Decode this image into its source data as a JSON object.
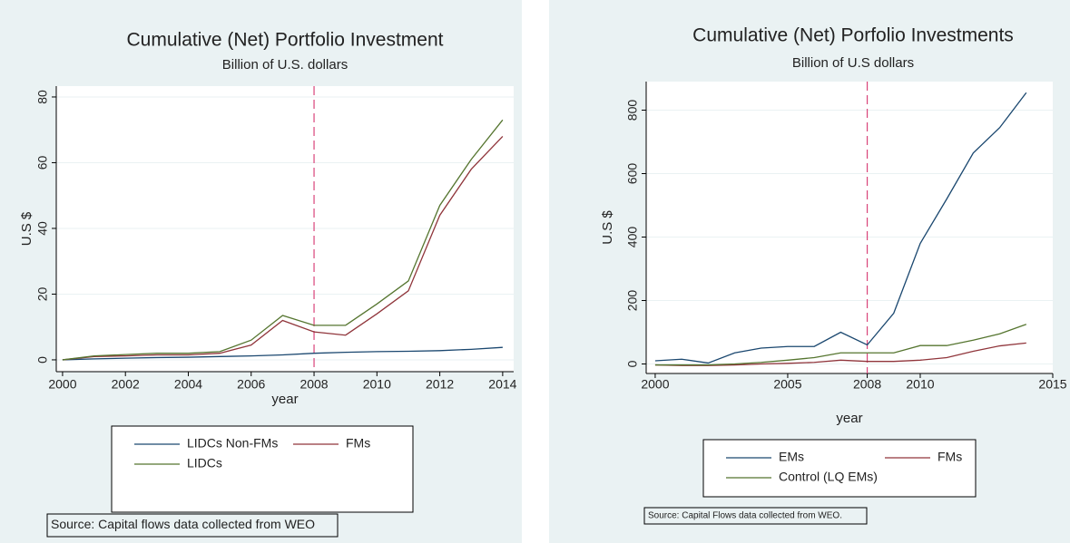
{
  "chart_data": [
    {
      "type": "line",
      "title": "Cumulative (Net) Portfolio Investment",
      "subtitle": "Billion of U.S. dollars",
      "x_label": "year",
      "y_label": "U.S $",
      "note": "Source: Capital flows data collected from WEO",
      "x": [
        2000,
        2001,
        2002,
        2003,
        2004,
        2005,
        2006,
        2007,
        2008,
        2009,
        2010,
        2011,
        2012,
        2013,
        2014
      ],
      "series": [
        {
          "name": "LIDCs Non-FMs",
          "color": "#1a476f",
          "values": [
            0,
            0.3,
            0.5,
            0.7,
            0.8,
            1,
            1.2,
            1.5,
            2,
            2.3,
            2.5,
            2.6,
            2.8,
            3.2,
            3.8
          ]
        },
        {
          "name": "FMs",
          "color": "#90353b",
          "values": [
            0,
            1,
            1.2,
            1.5,
            1.5,
            2,
            4.5,
            12,
            8.5,
            7.5,
            14,
            21,
            44,
            58,
            68
          ]
        },
        {
          "name": "LIDCs",
          "color": "#55752f",
          "values": [
            0,
            1.2,
            1.6,
            2,
            2,
            2.5,
            6,
            13.5,
            10.5,
            10.5,
            17,
            24,
            47,
            61,
            73
          ]
        }
      ],
      "reference_line": 2008,
      "reference_color": "#d9437a",
      "xlim": [
        1999.8,
        2014.35
      ],
      "xticks": [
        2000,
        2002,
        2004,
        2006,
        2008,
        2010,
        2012,
        2014
      ],
      "ylim": [
        -3.6,
        83.3
      ],
      "yticks": [
        0,
        20,
        40,
        60,
        80
      ],
      "grid": true
    },
    {
      "type": "line",
      "title": "Cumulative (Net) Porfolio Investments",
      "subtitle": "Billion of U.S dollars",
      "x_label": "year",
      "y_label": "U.S $",
      "note": "Source: Capital Flows data collected from WEO.",
      "x": [
        2000,
        2001,
        2002,
        2003,
        2004,
        2005,
        2006,
        2007,
        2008,
        2009,
        2010,
        2011,
        2012,
        2013,
        2014
      ],
      "series": [
        {
          "name": "EMs",
          "color": "#1a476f",
          "values": [
            10,
            15,
            3,
            35,
            50,
            55,
            55,
            100,
            60,
            160,
            380,
            520,
            665,
            745,
            855
          ]
        },
        {
          "name": "FMs",
          "color": "#90353b",
          "values": [
            -3,
            -5,
            -5,
            -3,
            0,
            2,
            5,
            12,
            8,
            8,
            12,
            20,
            40,
            57,
            66
          ]
        },
        {
          "name": "Control (LQ EMs)",
          "color": "#55752f",
          "values": [
            -3,
            -3,
            -3,
            0,
            5,
            12,
            20,
            35,
            35,
            35,
            58,
            58,
            75,
            95,
            125
          ]
        }
      ],
      "reference_line": 2008,
      "reference_color": "#d9437a",
      "xlim": [
        1999.66,
        2015
      ],
      "xticks": [
        2000,
        2005,
        2008,
        2010,
        2015
      ],
      "ylim": [
        -30,
        890
      ],
      "yticks": [
        0,
        200,
        400,
        600,
        800
      ],
      "grid": true
    }
  ]
}
